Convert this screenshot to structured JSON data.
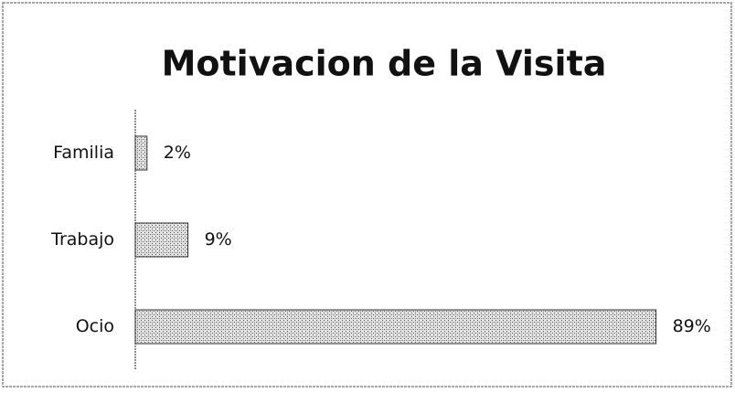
{
  "chart_data": {
    "type": "bar",
    "orientation": "horizontal",
    "title": "Motivacion de la Visita",
    "categories": [
      "Familia",
      "Trabajo",
      "Ocio"
    ],
    "values": [
      2,
      9,
      89
    ],
    "value_labels": [
      "2%",
      "9%",
      "89%"
    ],
    "color": "#b8b8b8"
  }
}
